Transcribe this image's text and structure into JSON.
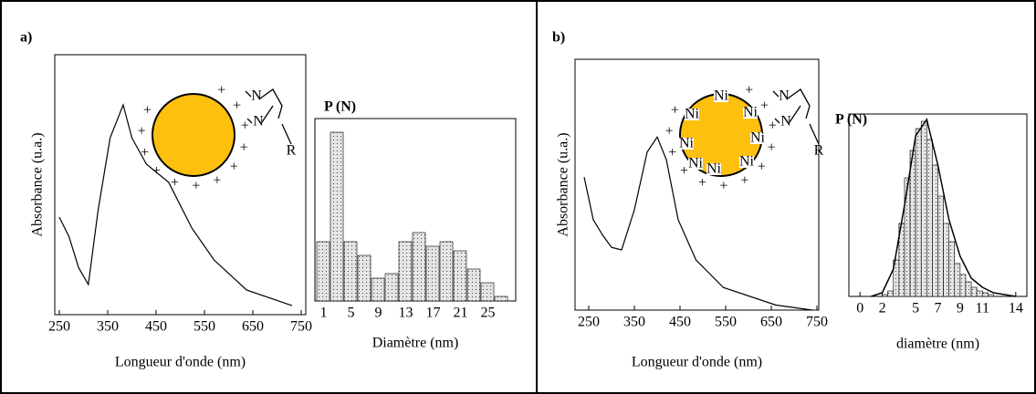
{
  "chart_data": [
    {
      "type": "line",
      "title": "a)",
      "xlabel": "Longueur d'onde (nm)",
      "ylabel": "Absorbance (u.a.)",
      "x": [
        250,
        270,
        290,
        310,
        330,
        355,
        382,
        400,
        430,
        476,
        524,
        570,
        637,
        731
      ],
      "values": [
        0.375,
        0.3,
        0.18,
        0.116,
        0.4,
        0.68,
        0.807,
        0.68,
        0.579,
        0.509,
        0.333,
        0.21,
        0.095,
        0.035
      ],
      "xlim": [
        250,
        750
      ],
      "xticks": [
        250,
        350,
        450,
        550,
        650,
        750
      ],
      "ylim": [
        0,
        1
      ],
      "color": "#000000",
      "inset": {
        "charge": "+",
        "ligand_atoms": [
          "N",
          "N"
        ],
        "ligand_end": "R",
        "color": "#fdc00f"
      }
    },
    {
      "type": "bar",
      "ylabel": "P (N)",
      "xlabel": "Diamètre (nm)",
      "categories": [
        "1",
        null,
        "5",
        null,
        "9",
        null,
        "13",
        null,
        "17",
        null,
        "21",
        null,
        "25",
        null
      ],
      "values": [
        65,
        185,
        65,
        50,
        25,
        30,
        65,
        75,
        60,
        65,
        55,
        35,
        20,
        5
      ],
      "ylim": [
        0,
        200
      ],
      "color": "#d8d8d8"
    },
    {
      "type": "line",
      "title": "b)",
      "xlabel": "Longueur d'onde (nm)",
      "ylabel": "Absorbance (u.a.)",
      "x": [
        240,
        260,
        280,
        300,
        322,
        350,
        378,
        400,
        420,
        446,
        485,
        545,
        660,
        740
      ],
      "values": [
        0.53,
        0.36,
        0.3,
        0.25,
        0.24,
        0.4,
        0.63,
        0.69,
        0.6,
        0.36,
        0.2,
        0.09,
        0.02,
        0.0
      ],
      "xlim": [
        250,
        750
      ],
      "xticks": [
        250,
        350,
        450,
        550,
        650,
        750
      ],
      "ylim": [
        0,
        1
      ],
      "color": "#000000",
      "inset": {
        "charge": "+",
        "surface": "Ni",
        "ligand_atoms": [
          "N",
          "N"
        ],
        "ligand_end": "R",
        "color": "#fdc00f"
      }
    },
    {
      "type": "histogram",
      "ylabel": "P (N)",
      "xlabel": "diamètre (nm)",
      "bins": [
        2,
        2.5,
        3,
        3.5,
        4,
        4.5,
        5,
        5.5,
        6,
        6.5,
        7,
        7.5,
        8,
        8.5,
        9,
        9.5,
        10,
        10.5,
        11,
        11.5,
        12
      ],
      "values": [
        1,
        3,
        20,
        40,
        65,
        80,
        92,
        96,
        86,
        72,
        55,
        40,
        30,
        18,
        12,
        8,
        5,
        3,
        2,
        1
      ],
      "xlim": [
        -1,
        15
      ],
      "xticks": [
        0,
        2,
        5,
        7,
        9,
        11,
        14
      ],
      "ylim": [
        0,
        100
      ],
      "color": "#d8d8d8",
      "fit": {
        "x": [
          1,
          2,
          3,
          4,
          5,
          6,
          7,
          8,
          9,
          10,
          11,
          12,
          13,
          14
        ],
        "values": [
          0,
          2,
          15,
          50,
          88,
          97,
          72,
          42,
          22,
          10,
          5,
          2,
          1,
          0
        ]
      }
    }
  ]
}
